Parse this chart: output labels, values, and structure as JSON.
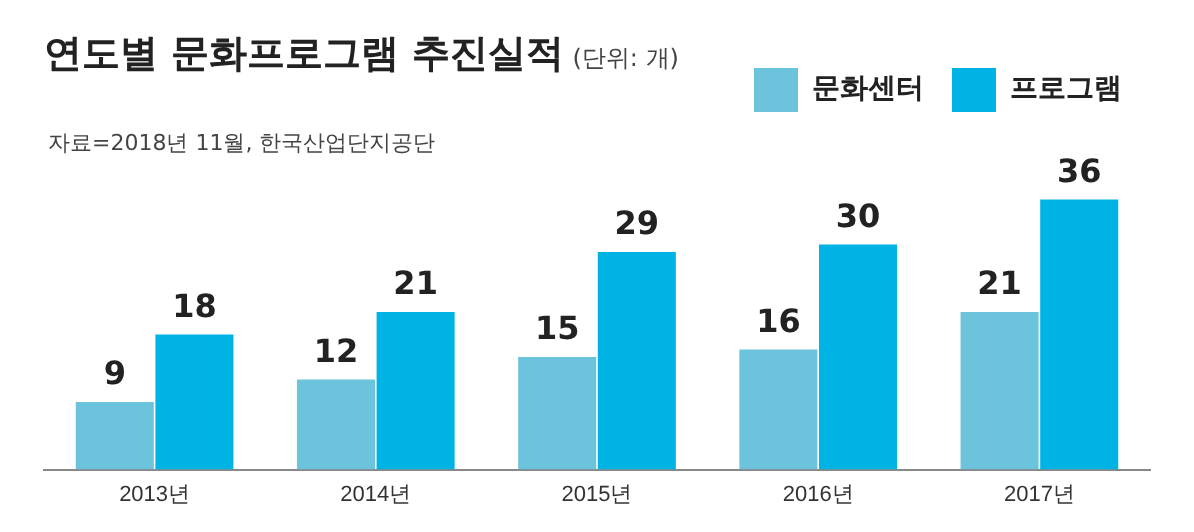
{
  "chart_data": {
    "type": "bar",
    "title": "연도별 문화프로그램 추진실적",
    "subtitle": "(단위: 개)",
    "annotations": [
      "자료=2018년 11월, 한국산업단지공단"
    ],
    "categories": [
      "2013년",
      "2014년",
      "2015년",
      "2016년",
      "2017년"
    ],
    "series": [
      {
        "name": "문화센터",
        "color": "#6cc4dc",
        "values": [
          9,
          12,
          15,
          16,
          21
        ]
      },
      {
        "name": "프로그램",
        "color": "#00b3e5",
        "values": [
          18,
          21,
          29,
          30,
          36
        ]
      }
    ],
    "data_labels": true,
    "legend": "top right",
    "grid": false
  }
}
